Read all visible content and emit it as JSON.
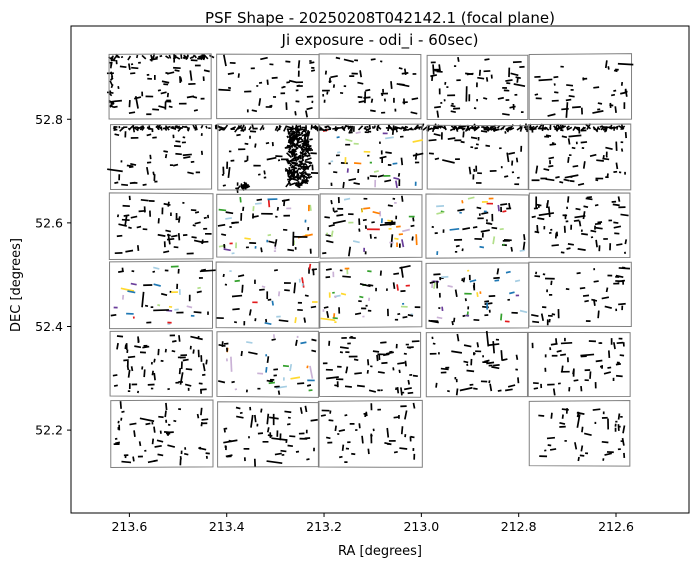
{
  "chart_data": {
    "type": "scatter",
    "title": "PSF Shape - 20250208T042142.1 (focal plane)",
    "subtitle": "Ji exposure - odi_i - 60sec)",
    "xlabel": "RA [degrees]",
    "ylabel": "DEC [degrees]",
    "x_inverted": true,
    "xlim": [
      213.72,
      212.45
    ],
    "ylim": [
      52.04,
      52.98
    ],
    "x_ticks": [
      213.6,
      213.4,
      213.2,
      213.0,
      212.8,
      212.6
    ],
    "x_tick_labels": [
      "213.6",
      "213.4",
      "213.2",
      "213.0",
      "212.8",
      "212.6"
    ],
    "y_ticks": [
      52.2,
      52.4,
      52.6,
      52.8
    ],
    "y_tick_labels": [
      "52.2",
      "52.4",
      "52.6",
      "52.8"
    ],
    "grid": false,
    "legend": "none",
    "ota_outline_color": "#808080",
    "whisker_color": "#000000",
    "highlight_colors": [
      "#e31a1c",
      "#1f78b4",
      "#33a02c",
      "#ff7f00",
      "#6a3d9a",
      "#a6cee3",
      "#b2df8a",
      "#cab2d6",
      "#ffd92f"
    ],
    "ota_columns_ra": [
      [
        213.64,
        213.43
      ],
      [
        213.42,
        213.21
      ],
      [
        213.21,
        213.0
      ],
      [
        212.99,
        212.78
      ],
      [
        212.78,
        212.57
      ]
    ],
    "ota_rows_dec": [
      [
        52.925,
        52.8
      ],
      [
        52.79,
        52.665
      ],
      [
        52.657,
        52.532
      ],
      [
        52.523,
        52.398
      ],
      [
        52.39,
        52.265
      ],
      [
        52.255,
        52.13
      ]
    ],
    "ota_missing": [
      [
        5,
        3
      ]
    ],
    "colored_otas": [
      [
        1,
        2
      ],
      [
        2,
        1
      ],
      [
        2,
        2
      ],
      [
        2,
        3
      ],
      [
        3,
        0
      ],
      [
        3,
        1
      ],
      [
        3,
        2
      ],
      [
        3,
        3
      ],
      [
        4,
        1
      ]
    ],
    "dense_bands": [
      {
        "ra": [
          213.64,
          213.43
        ],
        "dec": [
          52.918,
          52.922
        ]
      },
      {
        "ra": [
          213.64,
          213.635
        ],
        "dec": [
          52.82,
          52.92
        ]
      },
      {
        "ra": [
          213.63,
          212.58
        ],
        "dec": [
          52.78,
          52.786
        ]
      },
      {
        "ra": [
          213.275,
          213.23
        ],
        "dec": [
          52.67,
          52.785
        ]
      },
      {
        "ra": [
          213.38,
          213.355
        ],
        "dec": [
          52.663,
          52.675
        ]
      }
    ]
  }
}
